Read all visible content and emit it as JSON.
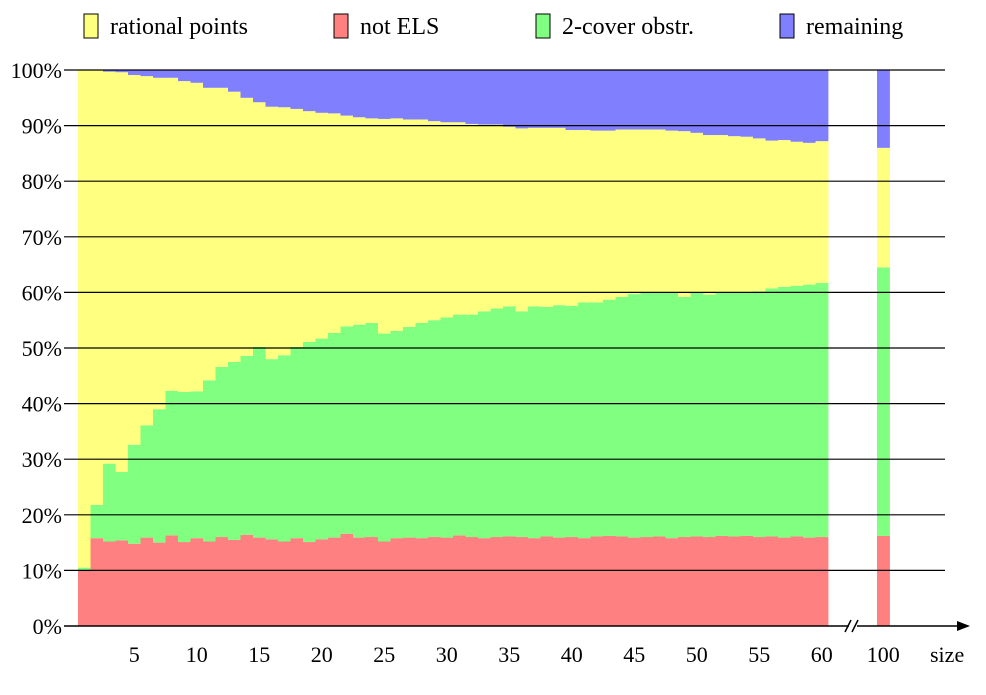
{
  "chart_data": {
    "type": "bar",
    "stacked": true,
    "xlabel": "size",
    "ylim": [
      0,
      100
    ],
    "y_ticks": [
      "0%",
      "10%",
      "20%",
      "30%",
      "40%",
      "50%",
      "60%",
      "70%",
      "80%",
      "90%",
      "100%"
    ],
    "x_ticks": [
      "5",
      "10",
      "15",
      "20",
      "25",
      "30",
      "35",
      "40",
      "45",
      "50",
      "55",
      "60",
      "100"
    ],
    "x_axis_break_between": [
      60,
      100
    ],
    "categories": [
      1,
      2,
      3,
      4,
      5,
      6,
      7,
      8,
      9,
      10,
      11,
      12,
      13,
      14,
      15,
      16,
      17,
      18,
      19,
      20,
      21,
      22,
      23,
      24,
      25,
      26,
      27,
      28,
      29,
      30,
      31,
      32,
      33,
      34,
      35,
      36,
      37,
      38,
      39,
      40,
      41,
      42,
      43,
      44,
      45,
      46,
      47,
      48,
      49,
      50,
      51,
      52,
      53,
      54,
      55,
      56,
      57,
      58,
      59,
      60,
      100
    ],
    "grid": true,
    "legend_placement": "top",
    "series": [
      {
        "name": "not ELS",
        "color": "#ff8080",
        "values": [
          10,
          15.8,
          15.2,
          15.4,
          14.8,
          15.9,
          15,
          16.3,
          15.1,
          15.8,
          15.2,
          16,
          15.5,
          16.4,
          15.9,
          15.6,
          15.2,
          15.8,
          15.1,
          15.6,
          15.9,
          16.6,
          15.9,
          16,
          15.2,
          15.8,
          15.9,
          15.8,
          16,
          15.9,
          16.3,
          16,
          15.8,
          16,
          16.1,
          16,
          15.8,
          16.1,
          15.9,
          16,
          15.8,
          16.1,
          16.2,
          16.1,
          15.9,
          16,
          16.1,
          15.8,
          16,
          16.1,
          16,
          16.2,
          16.1,
          16.2,
          16,
          16.1,
          15.9,
          16.1,
          15.9,
          16,
          16.2
        ]
      },
      {
        "name": "2-cover obstr.",
        "color": "#80ff80",
        "values": [
          0.5,
          6,
          14,
          12.3,
          17.8,
          20.2,
          24,
          26,
          27,
          26.4,
          29,
          30.6,
          32,
          32.2,
          34.3,
          32.4,
          33.5,
          34.4,
          36,
          36.1,
          36.8,
          37.3,
          38.3,
          38.5,
          37.4,
          37.3,
          37.9,
          38.7,
          39,
          39.6,
          39.7,
          40,
          40.8,
          41.1,
          41.4,
          40.6,
          41.7,
          41.3,
          41.8,
          41.6,
          42.4,
          42.1,
          42.5,
          43.1,
          43.8,
          44,
          43.9,
          44.2,
          43.2,
          43.8,
          43.6,
          43.7,
          44,
          43.9,
          44.2,
          44.6,
          45.1,
          45.1,
          45.5,
          45.7,
          48.3
        ]
      },
      {
        "name": "rational points",
        "color": "#ffff80",
        "values": [
          89.5,
          78.2,
          70.5,
          71.9,
          66.5,
          62.8,
          59.6,
          56.3,
          55.9,
          55.5,
          52.6,
          50.2,
          48.6,
          46.4,
          44,
          45.4,
          44.6,
          42.8,
          41.5,
          40.6,
          39.5,
          37.9,
          37.3,
          36.8,
          38.6,
          38.2,
          37.3,
          36.6,
          35.8,
          35.1,
          34.6,
          34.3,
          33.6,
          33.1,
          32.3,
          32.9,
          32.1,
          32.2,
          31.9,
          31.6,
          31,
          30.9,
          30.4,
          30.1,
          29.6,
          29.3,
          29.3,
          29.1,
          29.8,
          28.8,
          28.7,
          28.4,
          28,
          27.9,
          27.5,
          26.6,
          26.4,
          25.9,
          25.5,
          25.5,
          21.5
        ]
      },
      {
        "name": "remaining",
        "color": "#8080ff",
        "values": [
          0,
          0,
          0.3,
          0.4,
          0.9,
          1.1,
          1.4,
          1.4,
          2,
          2.3,
          3.2,
          3.7,
          3.9,
          5,
          5.8,
          6.6,
          6.7,
          7,
          7.4,
          7.7,
          7.8,
          8.2,
          8.5,
          8.7,
          8.8,
          8.7,
          8.9,
          8.9,
          9.2,
          9.4,
          9.4,
          9.7,
          9.8,
          9.8,
          10.2,
          10.5,
          10.4,
          10.4,
          10.4,
          10.8,
          10.8,
          10.9,
          10.9,
          10.7,
          10.7,
          10.7,
          10.7,
          10.9,
          11,
          11.3,
          11.7,
          11.7,
          11.9,
          12,
          12.3,
          12.7,
          12.6,
          12.9,
          13.1,
          12.8,
          14
        ]
      }
    ]
  }
}
